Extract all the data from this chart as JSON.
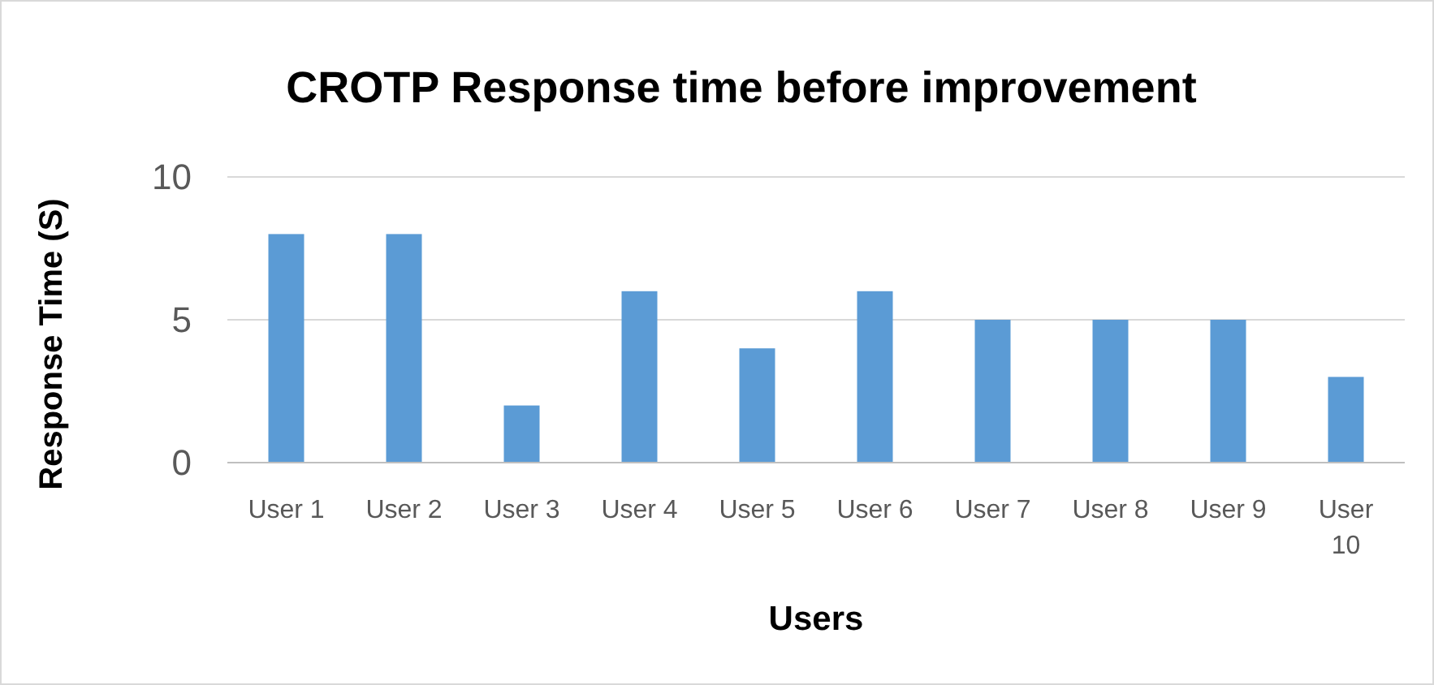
{
  "chart_data": {
    "type": "bar",
    "title": "CROTP Response time before improvement",
    "xlabel": "Users",
    "ylabel": "Response Time (S)",
    "categories": [
      "User 1",
      "User 2",
      "User 3",
      "User 4",
      "User 5",
      "User 6",
      "User 7",
      "User 8",
      "User 9",
      "User 10"
    ],
    "values": [
      8,
      8,
      2,
      6,
      4,
      6,
      5,
      5,
      5,
      3
    ],
    "color": "#5b9bd5",
    "ylim": [
      0,
      10
    ],
    "yticks": [
      0,
      5,
      10
    ],
    "grid": "y"
  }
}
